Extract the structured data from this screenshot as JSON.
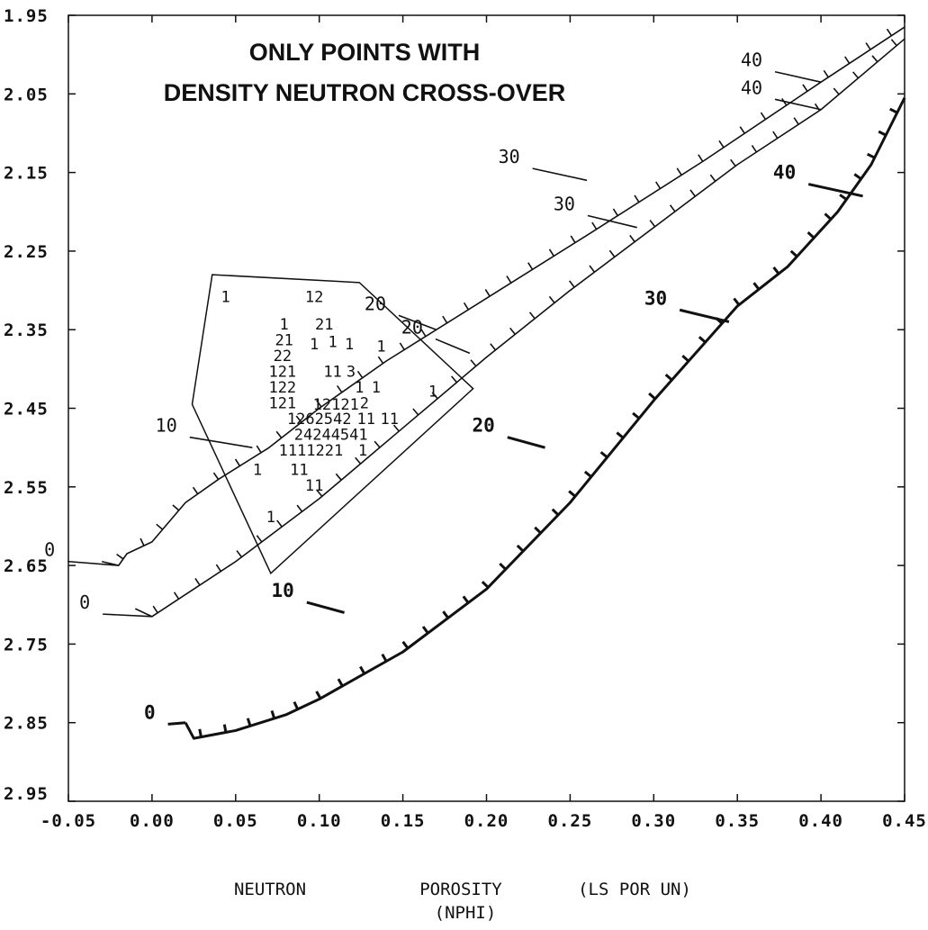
{
  "chart_data": {
    "type": "scatter",
    "title_lines": [
      "ONLY POINTS WITH",
      "DENSITY NEUTRON CROSS-OVER"
    ],
    "xlabel_line1": [
      "NEUTRON",
      "POROSITY",
      "(LS POR UN)"
    ],
    "xlabel_line2": "(NPHI)",
    "xlim": [
      -0.05,
      0.45
    ],
    "ylim": [
      1.95,
      2.95
    ],
    "y_inverted": true,
    "x_ticks": [
      "-0.05",
      "0.00",
      "0.05",
      "0.10",
      "0.15",
      "0.20",
      "0.25",
      "0.30",
      "0.35",
      "0.40",
      "0.45"
    ],
    "y_ticks": [
      "1.95",
      "2.05",
      "2.15",
      "2.25",
      "2.35",
      "2.45",
      "2.55",
      "2.65",
      "2.75",
      "2.85",
      "2.95"
    ],
    "x_tick_values": [
      -0.05,
      0.0,
      0.05,
      0.1,
      0.15,
      0.2,
      0.25,
      0.3,
      0.35,
      0.4,
      0.45
    ],
    "y_tick_values": [
      1.95,
      2.05,
      2.15,
      2.25,
      2.35,
      2.45,
      2.55,
      2.65,
      2.75,
      2.85,
      2.95
    ],
    "curves": [
      {
        "bold": false,
        "points": [
          [
            -0.03,
            2.645
          ],
          [
            -0.02,
            2.65
          ],
          [
            -0.015,
            2.635
          ],
          [
            0.0,
            2.62
          ],
          [
            0.02,
            2.57
          ],
          [
            0.04,
            2.54
          ],
          [
            0.07,
            2.5
          ],
          [
            0.1,
            2.45
          ],
          [
            0.14,
            2.39
          ],
          [
            0.2,
            2.31
          ],
          [
            0.26,
            2.23
          ],
          [
            0.33,
            2.135
          ],
          [
            0.4,
            2.035
          ],
          [
            0.45,
            1.965
          ]
        ],
        "labels": [
          {
            "text": "0",
            "at": [
              -0.02,
              2.65
            ],
            "dx": -0.038,
            "dy": -0.012
          },
          {
            "text": "10",
            "at": [
              0.06,
              2.5
            ],
            "dx": -0.045,
            "dy": -0.02
          },
          {
            "text": "20",
            "at": [
              0.17,
              2.35
            ],
            "dx": -0.03,
            "dy": -0.025
          },
          {
            "text": "30",
            "at": [
              0.26,
              2.16
            ],
            "dx": -0.04,
            "dy": -0.022
          },
          {
            "text": "40",
            "at": [
              0.4,
              2.035
            ],
            "dx": -0.035,
            "dy": -0.02
          }
        ]
      },
      {
        "bold": false,
        "points": [
          [
            -0.01,
            2.705
          ],
          [
            0.0,
            2.715
          ],
          [
            0.05,
            2.645
          ],
          [
            0.1,
            2.565
          ],
          [
            0.15,
            2.475
          ],
          [
            0.2,
            2.385
          ],
          [
            0.25,
            2.3
          ],
          [
            0.3,
            2.22
          ],
          [
            0.35,
            2.14
          ],
          [
            0.4,
            2.07
          ],
          [
            0.45,
            1.98
          ]
        ],
        "labels": [
          {
            "text": "0",
            "at": [
              0.0,
              2.715
            ],
            "dx": -0.037,
            "dy": -0.01
          },
          {
            "text": "20",
            "at": [
              0.19,
              2.38
            ],
            "dx": -0.028,
            "dy": -0.025
          },
          {
            "text": "30",
            "at": [
              0.29,
              2.22
            ],
            "dx": -0.037,
            "dy": -0.022
          },
          {
            "text": "40",
            "at": [
              0.4,
              2.07
            ],
            "dx": -0.035,
            "dy": -0.02
          }
        ]
      },
      {
        "bold": true,
        "points": [
          [
            0.02,
            2.85
          ],
          [
            0.025,
            2.87
          ],
          [
            0.05,
            2.86
          ],
          [
            0.08,
            2.84
          ],
          [
            0.1,
            2.82
          ],
          [
            0.15,
            2.76
          ],
          [
            0.2,
            2.68
          ],
          [
            0.25,
            2.57
          ],
          [
            0.3,
            2.44
          ],
          [
            0.35,
            2.32
          ],
          [
            0.38,
            2.27
          ],
          [
            0.41,
            2.2
          ],
          [
            0.43,
            2.14
          ],
          [
            0.45,
            2.055
          ]
        ],
        "labels": [
          {
            "text": "0",
            "at": [
              0.02,
              2.85
            ],
            "dx": -0.018,
            "dy": -0.005
          },
          {
            "text": "10",
            "at": [
              0.115,
              2.71
            ],
            "dx": -0.03,
            "dy": -0.02
          },
          {
            "text": "20",
            "at": [
              0.235,
              2.5
            ],
            "dx": -0.03,
            "dy": -0.02
          },
          {
            "text": "30",
            "at": [
              0.345,
              2.34
            ],
            "dx": -0.037,
            "dy": -0.022
          },
          {
            "text": "40",
            "at": [
              0.425,
              2.18
            ],
            "dx": -0.04,
            "dy": -0.022
          }
        ]
      }
    ],
    "polygon": [
      [
        0.036,
        2.28
      ],
      [
        0.124,
        2.29
      ],
      [
        0.192,
        2.425
      ],
      [
        0.071,
        2.66
      ],
      [
        0.024,
        2.445
      ]
    ],
    "points": [
      {
        "x": 0.044,
        "y": 2.315,
        "label": "1"
      },
      {
        "x": 0.097,
        "y": 2.315,
        "label": "12"
      },
      {
        "x": 0.079,
        "y": 2.35,
        "label": "1"
      },
      {
        "x": 0.103,
        "y": 2.35,
        "label": "21"
      },
      {
        "x": 0.079,
        "y": 2.37,
        "label": "21"
      },
      {
        "x": 0.097,
        "y": 2.375,
        "label": "1"
      },
      {
        "x": 0.108,
        "y": 2.372,
        "label": "1"
      },
      {
        "x": 0.118,
        "y": 2.375,
        "label": "1"
      },
      {
        "x": 0.137,
        "y": 2.378,
        "label": "1"
      },
      {
        "x": 0.078,
        "y": 2.39,
        "label": "22"
      },
      {
        "x": 0.078,
        "y": 2.41,
        "label": "121"
      },
      {
        "x": 0.108,
        "y": 2.41,
        "label": "11"
      },
      {
        "x": 0.119,
        "y": 2.41,
        "label": "3"
      },
      {
        "x": 0.078,
        "y": 2.43,
        "label": "122"
      },
      {
        "x": 0.124,
        "y": 2.43,
        "label": "1"
      },
      {
        "x": 0.134,
        "y": 2.43,
        "label": "1"
      },
      {
        "x": 0.078,
        "y": 2.45,
        "label": "121"
      },
      {
        "x": 0.11,
        "y": 2.452,
        "label": "12121"
      },
      {
        "x": 0.127,
        "y": 2.45,
        "label": "2"
      },
      {
        "x": 0.168,
        "y": 2.435,
        "label": "1"
      },
      {
        "x": 0.1,
        "y": 2.47,
        "label": "1262542"
      },
      {
        "x": 0.128,
        "y": 2.47,
        "label": "11"
      },
      {
        "x": 0.142,
        "y": 2.47,
        "label": "11"
      },
      {
        "x": 0.107,
        "y": 2.49,
        "label": "24244541"
      },
      {
        "x": 0.095,
        "y": 2.51,
        "label": "1111221"
      },
      {
        "x": 0.126,
        "y": 2.51,
        "label": "1"
      },
      {
        "x": 0.063,
        "y": 2.535,
        "label": "1"
      },
      {
        "x": 0.088,
        "y": 2.535,
        "label": "11"
      },
      {
        "x": 0.097,
        "y": 2.555,
        "label": "11"
      },
      {
        "x": 0.071,
        "y": 2.595,
        "label": "1"
      }
    ]
  }
}
